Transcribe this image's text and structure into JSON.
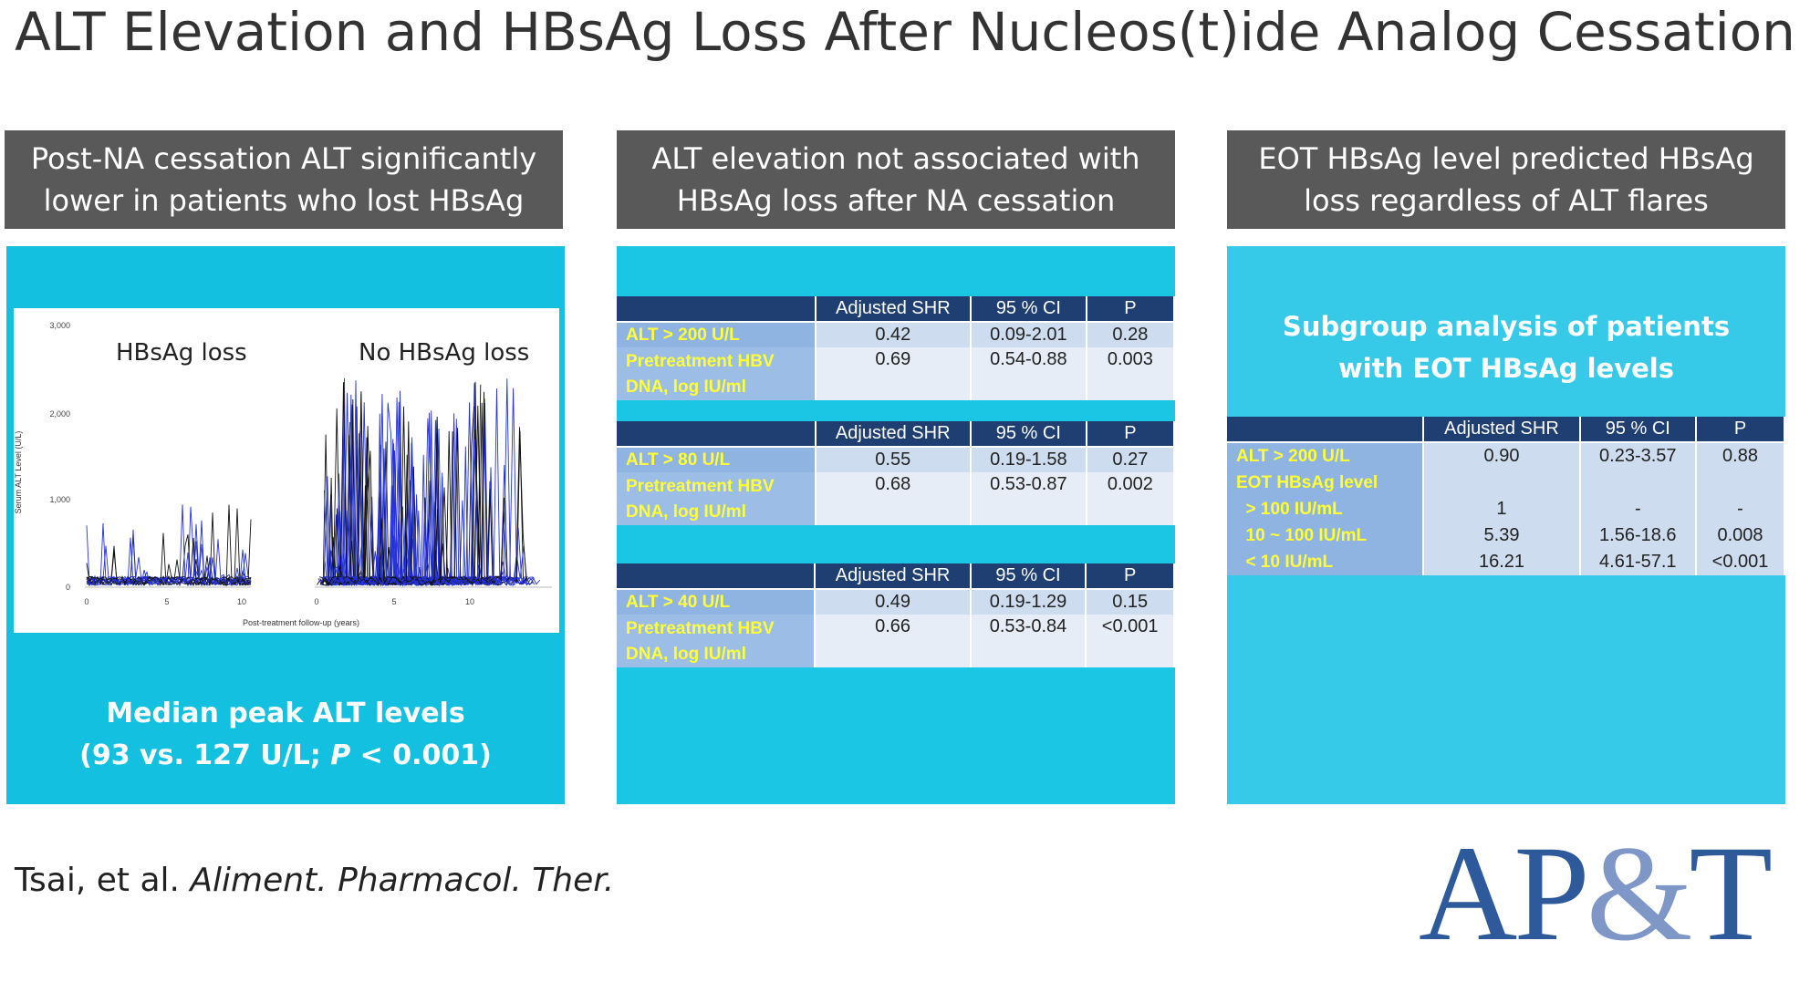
{
  "title": "ALT Elevation and HBsAg Loss After Nucleos(t)ide Analog Cessation",
  "headers": [
    "Post-NA cessation ALT significantly\nlower in patients who lost HBsAg",
    "ALT elevation not associated with\nHBsAg loss after NA cessation",
    "EOT HBsAg level predicted HBsAg\nloss regardless of ALT flares"
  ],
  "colors": {
    "header_bg": "#595959",
    "panel_bg": "#14c0df",
    "table_header": "#1f3f73",
    "label_yellow": "#ffff3a",
    "logo_blue": "#2e5a9c",
    "series_black": "#111111",
    "series_blue": "#2633d6"
  },
  "panel1": {
    "plot": {
      "left_label": "HBsAg loss",
      "right_label": "No HBsAg loss",
      "ylabel": "Serum ALT Level (U/L)",
      "xlabel": "Post-treatment follow-up (years)",
      "yticks": [
        "3,000",
        "2,000",
        "1,000",
        "0"
      ],
      "xticks_left": [
        "0",
        "5",
        "10"
      ],
      "xticks_right": [
        "0",
        "5",
        "10"
      ]
    },
    "median_line1": "Median peak ALT levels",
    "median_line2_pre": "(93 vs. 127 U/L; ",
    "median_line2_p": "P",
    "median_line2_post": " < 0.001)"
  },
  "panel2": {
    "columns": [
      "Adjusted SHR",
      "95 % CI",
      "P"
    ],
    "tables": [
      {
        "rows": [
          {
            "label": "ALT > 200 U/L",
            "shr": "0.42",
            "ci": "0.09-2.01",
            "p": "0.28"
          },
          {
            "label": "Pretreatment HBV DNA, log IU/ml",
            "shr": "0.69",
            "ci": "0.54-0.88",
            "p": "0.003"
          }
        ]
      },
      {
        "rows": [
          {
            "label": "ALT > 80 U/L",
            "shr": "0.55",
            "ci": "0.19-1.58",
            "p": "0.27"
          },
          {
            "label": "Pretreatment HBV DNA, log IU/ml",
            "shr": "0.68",
            "ci": "0.53-0.87",
            "p": "0.002"
          }
        ]
      },
      {
        "rows": [
          {
            "label": "ALT > 40 U/L",
            "shr": "0.49",
            "ci": "0.19-1.29",
            "p": "0.15"
          },
          {
            "label": "Pretreatment HBV DNA, log IU/ml",
            "shr": "0.66",
            "ci": "0.53-0.84",
            "p": "<0.001"
          }
        ]
      }
    ]
  },
  "panel3": {
    "subtitle": "Subgroup analysis of patients\nwith EOT HBsAg levels",
    "columns": [
      "Adjusted SHR",
      "95 % CI",
      "P"
    ],
    "rows": [
      {
        "label": "ALT > 200 U/L",
        "shr": "0.90",
        "ci": "0.23-3.57",
        "p": "0.88"
      },
      {
        "label": "EOT HBsAg level",
        "shr": "",
        "ci": "",
        "p": ""
      },
      {
        "label": "  > 100 IU/mL",
        "shr": "1",
        "ci": "-",
        "p": "-"
      },
      {
        "label": "  10 ~ 100 IU/mL",
        "shr": "5.39",
        "ci": "1.56-18.6",
        "p": "0.008"
      },
      {
        "label": "  < 10 IU/mL",
        "shr": "16.21",
        "ci": "4.61-57.1",
        "p": "<0.001"
      }
    ]
  },
  "citation_authors": "Tsai, et al. ",
  "citation_journal": "Aliment. Pharmacol. Ther.",
  "logo_text_a": "AP",
  "logo_text_amp": "&",
  "logo_text_b": "T"
}
